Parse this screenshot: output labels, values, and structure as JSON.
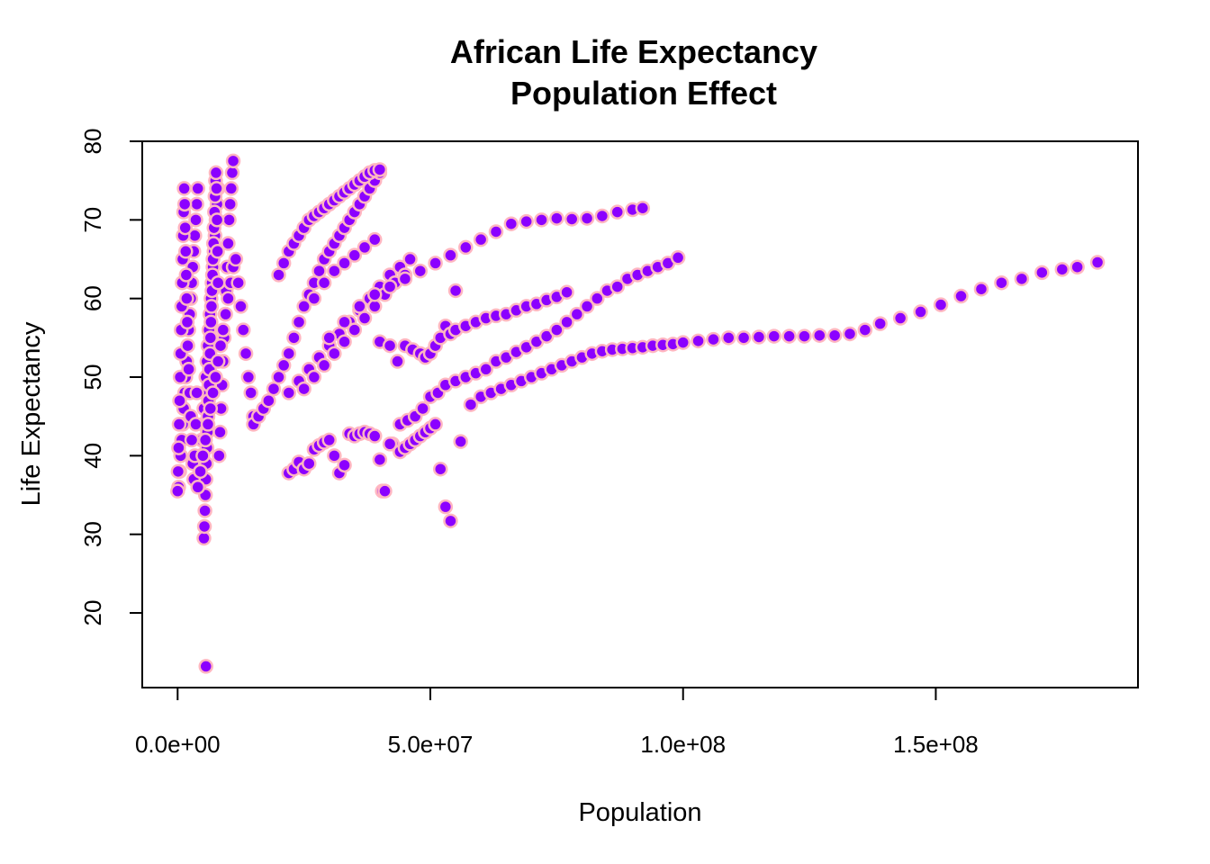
{
  "chart_data": {
    "type": "scatter",
    "title": [
      "African Life Expectancy",
      "Population Effect"
    ],
    "xlabel": "Population",
    "ylabel": "Life Expectancy",
    "xlim": [
      -7000000,
      190000000
    ],
    "ylim": [
      10.5,
      80
    ],
    "x_ticks": [
      0,
      50000000,
      100000000,
      150000000
    ],
    "x_tick_labels": [
      "0.0e+00",
      "5.0e+07",
      "1.0e+08",
      "1.5e+08"
    ],
    "y_ticks": [
      20,
      30,
      40,
      50,
      60,
      70,
      80
    ],
    "y_tick_labels": [
      "20",
      "30",
      "40",
      "50",
      "60",
      "70",
      "80"
    ],
    "grid": false,
    "marker": {
      "fill": "#8B00FF",
      "stroke": "#FFB6C1"
    },
    "series": [
      {
        "x": [
          200000,
          400000,
          600000,
          800000,
          1000000,
          1200000,
          1400000,
          1600000,
          1800000,
          2000000,
          2200000,
          2400000,
          2600000,
          2800000,
          3000000,
          3200000,
          3400000,
          3600000,
          3800000,
          4000000,
          4200000,
          4400000,
          4600000,
          4800000,
          5000000,
          5200000,
          5400000,
          5600000,
          5800000,
          6000000,
          6200000,
          6400000,
          6600000,
          6800000,
          7000000,
          7200000,
          7400000,
          7600000,
          7800000,
          8000000,
          8200000,
          8400000,
          8600000,
          8800000,
          9000000,
          9200000,
          9400000,
          9600000,
          9800000,
          10000000,
          10200000,
          10400000,
          10600000,
          10800000,
          11000000
        ],
        "y": [
          36,
          38,
          40,
          42,
          44,
          46,
          48,
          50,
          52,
          54,
          56,
          58,
          60,
          62,
          64,
          66,
          68,
          70,
          72,
          74,
          36,
          38,
          40,
          42,
          44,
          46,
          48,
          50,
          52,
          54,
          56,
          58,
          60,
          62,
          64,
          66,
          68,
          70,
          72,
          74,
          40,
          43,
          46,
          49,
          52,
          55,
          58,
          61,
          64,
          67,
          70,
          72,
          74,
          76,
          77.5
        ]
      },
      {
        "x": [
          0,
          100000,
          200000,
          300000,
          400000,
          500000,
          600000,
          700000,
          800000,
          900000,
          1000000,
          1100000,
          1200000,
          1300000,
          1400000,
          1500000,
          1600000,
          1700000,
          1800000,
          1900000,
          2000000,
          2200000,
          2400000,
          2600000,
          2800000,
          3000000,
          3200000,
          3400000,
          3600000,
          3800000
        ],
        "y": [
          35.5,
          38,
          41,
          44,
          47,
          50,
          53,
          56,
          59,
          62,
          65,
          68,
          71,
          74,
          72,
          69,
          66,
          63,
          60,
          57,
          54,
          51,
          48,
          45,
          42,
          39,
          37,
          40,
          44,
          48
        ]
      },
      {
        "x": [
          5200000,
          5300000,
          5400000,
          5500000,
          5600000,
          5700000,
          5800000,
          5900000,
          6000000,
          6100000,
          6200000,
          6300000,
          6400000,
          6500000,
          6600000,
          6700000,
          6800000,
          6900000,
          7000000,
          7100000,
          7200000,
          7300000,
          7400000,
          7500000,
          7600000,
          7700000,
          7800000,
          7900000,
          8000000
        ],
        "y": [
          29.5,
          31,
          33,
          35,
          37,
          39,
          41,
          43,
          45,
          47,
          49,
          51,
          53,
          55,
          57,
          59,
          61,
          63,
          65,
          67,
          69,
          71,
          73,
          75,
          76,
          74,
          70,
          66,
          62
        ]
      },
      {
        "x": [
          5600000
        ],
        "y": [
          13.2
        ]
      },
      {
        "x": [
          4000000,
          4500000,
          5000000,
          5500000,
          6000000,
          6500000,
          7000000,
          7500000,
          8000000,
          8500000,
          9000000,
          9500000,
          10000000,
          10500000,
          11000000,
          11500000,
          12000000,
          12500000,
          13000000,
          13500000,
          14000000,
          14500000,
          15000000
        ],
        "y": [
          36,
          38,
          40,
          42,
          44,
          46,
          48,
          50,
          52,
          54,
          56,
          58,
          60,
          62,
          64,
          65,
          62,
          59,
          56,
          53,
          50,
          48,
          45
        ]
      },
      {
        "x": [
          15000000,
          16000000,
          17000000,
          18000000,
          19000000,
          20000000,
          21000000,
          22000000,
          23000000,
          24000000,
          25000000,
          26000000,
          27000000,
          28000000,
          29000000,
          30000000,
          31000000,
          32000000,
          33000000,
          34000000,
          35000000,
          36000000,
          37000000,
          38000000,
          39000000,
          40000000
        ],
        "y": [
          44,
          45,
          46,
          47,
          48.5,
          50,
          51.5,
          53,
          55,
          57,
          59,
          60.5,
          62,
          63.5,
          65,
          66,
          67,
          68,
          69,
          70,
          71,
          72,
          73,
          74,
          75,
          76
        ]
      },
      {
        "x": [
          20000000,
          21000000,
          22000000,
          23000000,
          24000000,
          25000000,
          26000000,
          27000000,
          28000000,
          29000000,
          30000000,
          31000000,
          32000000,
          33000000,
          34000000,
          35000000,
          36000000,
          37000000,
          38000000,
          39000000,
          40000000
        ],
        "y": [
          63,
          64.5,
          66,
          67,
          68,
          69,
          70,
          70.5,
          71,
          71.5,
          72,
          72.5,
          73,
          73.5,
          74,
          74.5,
          75,
          75.5,
          76,
          76.3,
          76.4
        ]
      },
      {
        "x": [
          22000000,
          24000000,
          26000000,
          28000000,
          30000000,
          32000000,
          34000000,
          36000000,
          38000000,
          40000000,
          42000000,
          44000000,
          46000000
        ],
        "y": [
          48,
          49.5,
          51,
          52.5,
          54,
          55.5,
          57,
          58.5,
          60,
          61.5,
          63,
          64,
          65
        ]
      },
      {
        "x": [
          25000000,
          27000000,
          29000000,
          31000000,
          33000000,
          35000000,
          37000000,
          39000000,
          41000000,
          43000000,
          45000000
        ],
        "y": [
          48.5,
          50,
          51.5,
          53,
          54.5,
          56,
          57.5,
          59,
          60.5,
          62,
          63
        ]
      },
      {
        "x": [
          27000000,
          29000000,
          31000000,
          33000000,
          35000000,
          37000000,
          39000000
        ],
        "y": [
          60,
          62,
          63.5,
          64.5,
          65.5,
          66.5,
          67.5
        ]
      },
      {
        "x": [
          30000000,
          33000000,
          36000000,
          39000000,
          42000000,
          45000000,
          48000000,
          51000000,
          54000000,
          57000000,
          60000000,
          63000000,
          66000000,
          69000000,
          72000000,
          75000000,
          78000000,
          81000000,
          84000000,
          87000000,
          90000000,
          92000000
        ],
        "y": [
          55,
          57,
          59,
          60.5,
          61.5,
          62.5,
          63.5,
          64.5,
          65.5,
          66.5,
          67.5,
          68.5,
          69.5,
          69.8,
          70,
          70.2,
          70.1,
          70.2,
          70.5,
          71,
          71.3,
          71.5
        ]
      },
      {
        "x": [
          40000000,
          42000000,
          43500000,
          45000000,
          46500000,
          48000000,
          49000000,
          50000000,
          51000000,
          52000000,
          53000000,
          54000000,
          55000000,
          57000000,
          59000000,
          61000000,
          63000000,
          65000000,
          67000000,
          69000000,
          71000000,
          73000000,
          75000000,
          77000000
        ],
        "y": [
          54.5,
          54,
          52,
          54,
          53.5,
          53,
          52.5,
          53,
          54,
          55,
          56.5,
          55.5,
          56,
          56.5,
          57,
          57.5,
          57.8,
          58,
          58.5,
          59,
          59.3,
          59.8,
          60.2,
          60.8
        ]
      },
      {
        "x": [
          40500000,
          42500000,
          44000000,
          45500000,
          47000000,
          48500000,
          50000000,
          51500000,
          53000000,
          55000000,
          57000000,
          59000000,
          61000000,
          63000000,
          65000000,
          67000000,
          69000000,
          71000000,
          73000000,
          75000000,
          77000000,
          79000000,
          81000000,
          83000000,
          85000000,
          87000000,
          89000000,
          91000000,
          93000000,
          95000000,
          97000000,
          99000000
        ],
        "y": [
          35.5,
          41.5,
          44,
          44.5,
          45,
          46,
          47.5,
          48,
          49,
          49.5,
          50,
          50.5,
          51,
          52,
          52.5,
          53.2,
          53.8,
          54.5,
          55.2,
          56,
          57,
          58,
          59,
          60,
          61,
          61.5,
          62.5,
          63,
          63.5,
          64,
          64.5,
          65.2
        ]
      },
      {
        "x": [
          44000000,
          45000000,
          46000000,
          47000000,
          48000000,
          49000000,
          50000000,
          51000000,
          52000000,
          53000000,
          54000000,
          55000000,
          56000000
        ],
        "y": [
          40.5,
          41,
          41.5,
          42,
          42.5,
          43,
          43.5,
          44,
          38.3,
          33.5,
          31.7,
          61,
          41.8
        ]
      },
      {
        "x": [
          58000000,
          60000000,
          62000000,
          64000000,
          66000000,
          68000000,
          70000000,
          72000000,
          74000000,
          76000000,
          78000000,
          80000000,
          82000000,
          84000000,
          86000000,
          88000000,
          90000000,
          92000000,
          94000000,
          96000000,
          98000000,
          100000000,
          103000000,
          106000000,
          109000000,
          112000000,
          115000000,
          118000000,
          121000000,
          124000000,
          127000000,
          130000000,
          133000000,
          136000000,
          139000000,
          143000000,
          147000000,
          151000000,
          155000000,
          159000000,
          163000000,
          167000000,
          171000000,
          175000000,
          178000000,
          182000000
        ],
        "y": [
          46.5,
          47.5,
          48,
          48.5,
          49,
          49.5,
          50,
          50.5,
          51,
          51.5,
          52,
          52.5,
          53,
          53.3,
          53.5,
          53.6,
          53.7,
          53.8,
          54,
          54.1,
          54.2,
          54.4,
          54.6,
          54.8,
          55,
          55,
          55.1,
          55.2,
          55.2,
          55.2,
          55.3,
          55.3,
          55.5,
          56,
          56.8,
          57.5,
          58.3,
          59.2,
          60.3,
          61.2,
          62,
          62.5,
          63.3,
          63.7,
          64,
          64.6
        ]
      },
      {
        "x": [
          22000000,
          23000000,
          24000000,
          25000000,
          26000000,
          27000000,
          28000000,
          29000000,
          30000000,
          31000000,
          32000000,
          33000000,
          34000000,
          35000000,
          36000000,
          37000000,
          38000000,
          39000000,
          40000000,
          41000000,
          42000000
        ],
        "y": [
          37.8,
          38.3,
          39.2,
          38.3,
          39,
          40.8,
          41.3,
          41.7,
          42,
          40,
          37.8,
          38.8,
          42.8,
          42.5,
          42.8,
          43,
          42.8,
          42.5,
          39.5,
          35.5,
          41.5
        ]
      }
    ]
  }
}
